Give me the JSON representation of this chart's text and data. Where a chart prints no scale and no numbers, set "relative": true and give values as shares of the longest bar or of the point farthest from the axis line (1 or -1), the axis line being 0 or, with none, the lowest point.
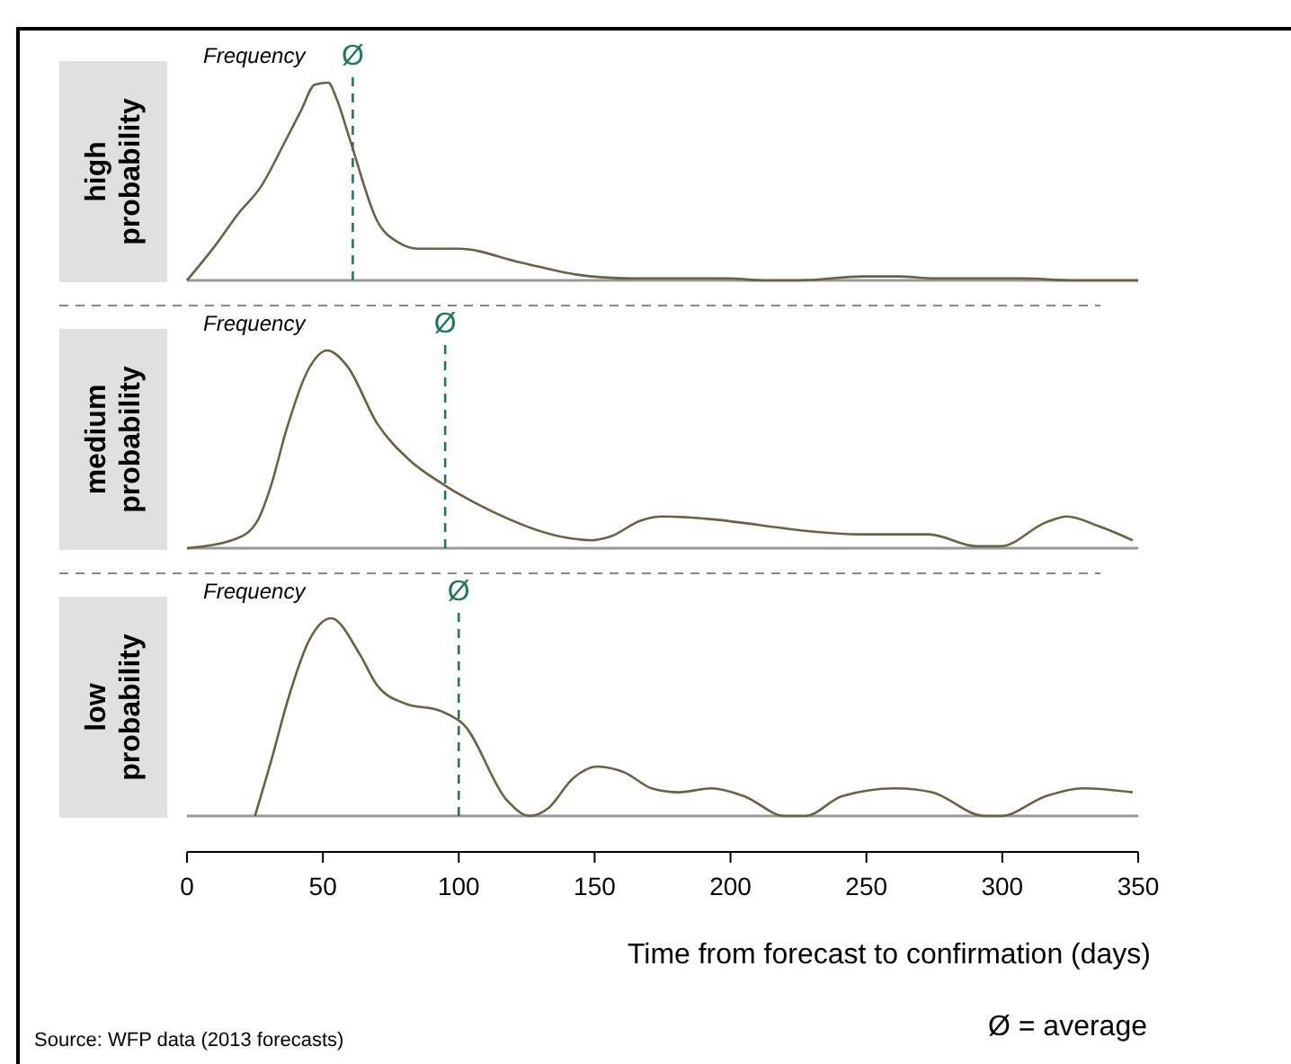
{
  "chart_data": [
    {
      "type": "line",
      "title": "high probability",
      "ylabel": "Frequency",
      "relative": true,
      "xlim": [
        0,
        350
      ],
      "series": [
        {
          "color": "#6b6040",
          "x": [
            0,
            10.6,
            19,
            27,
            36,
            42,
            47,
            52,
            55,
            60,
            70,
            78,
            85,
            100,
            123,
            143,
            163,
            199,
            212,
            225,
            249,
            262,
            275,
            308,
            325,
            350
          ],
          "values": [
            0,
            0.18,
            0.34,
            0.47,
            0.7,
            0.86,
            0.99,
            1,
            0.92,
            0.71,
            0.3,
            0.19,
            0.16,
            0.16,
            0.09,
            0.03,
            0.01,
            0.01,
            0,
            0,
            0.02,
            0.02,
            0.01,
            0.01,
            0,
            0
          ]
        }
      ],
      "ref_lines": [
        {
          "axis": "x",
          "value": 61,
          "label": "Ø",
          "color": "#1b7a5a",
          "line_style": "dashed"
        }
      ]
    },
    {
      "type": "line",
      "title": "medium probability",
      "ylabel": "Frequency",
      "relative": true,
      "xlim": [
        0,
        350
      ],
      "series": [
        {
          "color": "#6b6040",
          "x": [
            0,
            18.5,
            26,
            31,
            36.4,
            44.5,
            51.6,
            59,
            70,
            81.5,
            94.6,
            111.6,
            137,
            149,
            156,
            167,
            175,
            248.5,
            273,
            290.5,
            299.5,
            316,
            323.7,
            335.7,
            348
          ],
          "values": [
            0,
            0.05,
            0.14,
            0.32,
            0.59,
            0.9,
            1,
            0.92,
            0.63,
            0.45,
            0.32,
            0.19,
            0.06,
            0.04,
            0.06,
            0.14,
            0.16,
            0.07,
            0.07,
            0.01,
            0.01,
            0.13,
            0.16,
            0.11,
            0.04
          ]
        }
      ],
      "ref_lines": [
        {
          "axis": "x",
          "value": 95,
          "label": "Ø",
          "color": "#1b7a5a",
          "line_style": "dashed"
        }
      ]
    },
    {
      "type": "line",
      "title": "low probability",
      "ylabel": "Frequency",
      "xlabel": "Time from forecast to confirmation (days)",
      "relative": true,
      "xlim": [
        0,
        350
      ],
      "xticks": [
        0,
        50,
        100,
        150,
        200,
        250,
        300,
        350
      ],
      "series": [
        {
          "color": "#6b6040",
          "x": [
            25,
            31,
            37.4,
            45,
            53,
            63.5,
            70,
            80,
            93.5,
            102,
            117.7,
            126,
            133,
            142,
            151,
            161,
            171,
            181,
            193,
            205,
            220,
            227.5,
            241,
            260.6,
            274,
            293.5,
            299.5,
            316,
            329.5,
            348
          ],
          "values": [
            0,
            0.28,
            0.6,
            0.89,
            1,
            0.82,
            0.66,
            0.57,
            0.53,
            0.46,
            0.08,
            0,
            0.04,
            0.19,
            0.25,
            0.22,
            0.14,
            0.12,
            0.14,
            0.1,
            0,
            0,
            0.1,
            0.14,
            0.12,
            0,
            0,
            0.1,
            0.14,
            0.12
          ]
        }
      ],
      "ref_lines": [
        {
          "axis": "x",
          "value": 100,
          "label": "Ø",
          "color": "#1b7a5a",
          "line_style": "dashed"
        }
      ],
      "annotations": [
        "Ø = average",
        "Source: WFP data (2013 forecasts)"
      ]
    }
  ]
}
